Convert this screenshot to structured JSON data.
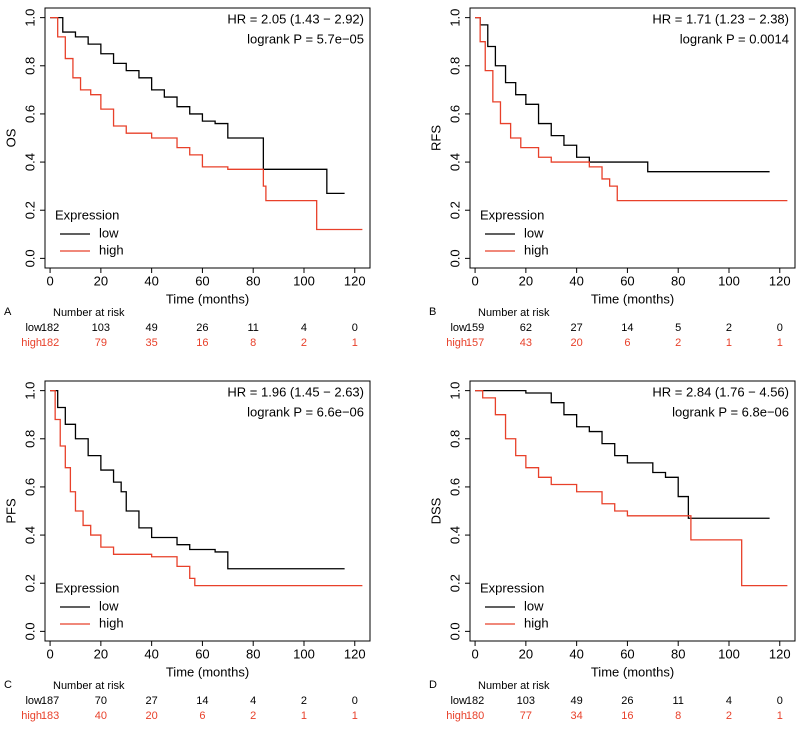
{
  "chart_data": [
    {
      "type": "line",
      "panel": "A",
      "y_label": "OS",
      "x_label": "Time (months)",
      "hr": "HR = 2.05 (1.43 − 2.92)",
      "logrank": "logrank P = 5.7e−05",
      "legend_title": "Expression",
      "legend": "bottom-left",
      "xlim": [
        -2,
        126
      ],
      "ylim": [
        -0.04,
        1.04
      ],
      "xticks": [
        0,
        20,
        40,
        60,
        80,
        100,
        120
      ],
      "yticks": [
        {
          "value": 0,
          "label": "0.0"
        },
        0.2,
        0.4,
        0.6,
        0.8,
        {
          "value": 1,
          "label": "1.0"
        }
      ],
      "series": [
        {
          "name": "low",
          "color": "#000000",
          "x": [
            0,
            5,
            10,
            15,
            20,
            25,
            30,
            35,
            40,
            45,
            50,
            55,
            60,
            65,
            70,
            82,
            84,
            108,
            109,
            116
          ],
          "values": [
            1,
            0.94,
            0.92,
            0.89,
            0.85,
            0.81,
            0.78,
            0.75,
            0.7,
            0.67,
            0.63,
            0.6,
            0.57,
            0.56,
            0.5,
            0.5,
            0.37,
            0.37,
            0.27,
            0.27
          ]
        },
        {
          "name": "high",
          "color": "#e8402a",
          "x": [
            0,
            3,
            6,
            9,
            12,
            16,
            20,
            25,
            30,
            40,
            50,
            55,
            60,
            70,
            82,
            84,
            85,
            104,
            105,
            123
          ],
          "values": [
            1,
            0.92,
            0.83,
            0.75,
            0.7,
            0.68,
            0.62,
            0.55,
            0.52,
            0.5,
            0.46,
            0.43,
            0.38,
            0.37,
            0.37,
            0.3,
            0.24,
            0.24,
            0.12,
            0.12
          ]
        }
      ],
      "risk_table": {
        "title": "Number at risk",
        "rows": [
          {
            "label": "low",
            "values": [
              182,
              103,
              49,
              26,
              11,
              4,
              0
            ]
          },
          {
            "label": "high",
            "values": [
              182,
              79,
              35,
              16,
              8,
              2,
              1
            ]
          }
        ]
      }
    },
    {
      "type": "line",
      "panel": "B",
      "y_label": "RFS",
      "x_label": "Time (months)",
      "hr": "HR = 1.71 (1.23 − 2.38)",
      "logrank": "logrank P = 0.0014",
      "legend_title": "Expression",
      "legend": "bottom-left",
      "xlim": [
        -2,
        126
      ],
      "ylim": [
        -0.04,
        1.04
      ],
      "xticks": [
        0,
        20,
        40,
        60,
        80,
        100,
        120
      ],
      "yticks": [
        {
          "value": 0,
          "label": "0.0"
        },
        0.2,
        0.4,
        0.6,
        0.8,
        {
          "value": 1,
          "label": "1.0"
        }
      ],
      "series": [
        {
          "name": "low",
          "color": "#000000",
          "x": [
            0,
            2,
            5,
            8,
            12,
            16,
            20,
            25,
            30,
            35,
            40,
            45,
            60,
            65,
            68,
            116
          ],
          "values": [
            1,
            0.97,
            0.88,
            0.8,
            0.73,
            0.68,
            0.64,
            0.56,
            0.51,
            0.47,
            0.42,
            0.4,
            0.4,
            0.4,
            0.36,
            0.36
          ]
        },
        {
          "name": "high",
          "color": "#e8402a",
          "x": [
            0,
            2,
            4,
            7,
            10,
            14,
            18,
            25,
            30,
            45,
            50,
            53,
            56,
            123
          ],
          "values": [
            1,
            0.9,
            0.78,
            0.65,
            0.56,
            0.5,
            0.46,
            0.42,
            0.4,
            0.38,
            0.33,
            0.3,
            0.24,
            0.24
          ]
        }
      ],
      "risk_table": {
        "title": "Number at risk",
        "rows": [
          {
            "label": "low",
            "values": [
              159,
              62,
              27,
              14,
              5,
              2,
              0
            ]
          },
          {
            "label": "high",
            "values": [
              157,
              43,
              20,
              6,
              2,
              1,
              1
            ]
          }
        ]
      }
    },
    {
      "type": "line",
      "panel": "C",
      "y_label": "PFS",
      "x_label": "Time (months)",
      "hr": "HR = 1.96 (1.45 − 2.63)",
      "logrank": "logrank P = 6.6e−06",
      "legend_title": "Expression",
      "legend": "bottom-left",
      "xlim": [
        -2,
        126
      ],
      "ylim": [
        -0.04,
        1.04
      ],
      "xticks": [
        0,
        20,
        40,
        60,
        80,
        100,
        120
      ],
      "yticks": [
        {
          "value": 0,
          "label": "0.0"
        },
        0.2,
        0.4,
        0.6,
        0.8,
        {
          "value": 1,
          "label": "1.0"
        }
      ],
      "series": [
        {
          "name": "low",
          "color": "#000000",
          "x": [
            0,
            3,
            6,
            10,
            15,
            20,
            25,
            28,
            30,
            35,
            40,
            50,
            55,
            65,
            70,
            116
          ],
          "values": [
            1,
            0.93,
            0.86,
            0.8,
            0.73,
            0.67,
            0.62,
            0.58,
            0.5,
            0.43,
            0.39,
            0.36,
            0.34,
            0.33,
            0.26,
            0.26
          ]
        },
        {
          "name": "high",
          "color": "#e8402a",
          "x": [
            0,
            2,
            4,
            6,
            8,
            10,
            13,
            16,
            20,
            25,
            40,
            50,
            55,
            57,
            123
          ],
          "values": [
            1,
            0.88,
            0.77,
            0.68,
            0.58,
            0.5,
            0.44,
            0.4,
            0.35,
            0.32,
            0.31,
            0.27,
            0.22,
            0.19,
            0.19
          ]
        }
      ],
      "risk_table": {
        "title": "Number at risk",
        "rows": [
          {
            "label": "low",
            "values": [
              187,
              70,
              27,
              14,
              4,
              2,
              0
            ]
          },
          {
            "label": "high",
            "values": [
              183,
              40,
              20,
              6,
              2,
              1,
              1
            ]
          }
        ]
      }
    },
    {
      "type": "line",
      "panel": "D",
      "y_label": "DSS",
      "x_label": "Time (months)",
      "hr": "HR = 2.84 (1.76 − 4.56)",
      "logrank": "logrank P = 6.8e−06",
      "legend_title": "Expression",
      "legend": "bottom-left",
      "xlim": [
        -2,
        126
      ],
      "ylim": [
        -0.04,
        1.04
      ],
      "xticks": [
        0,
        20,
        40,
        60,
        80,
        100,
        120
      ],
      "yticks": [
        {
          "value": 0,
          "label": "0.0"
        },
        0.2,
        0.4,
        0.6,
        0.8,
        {
          "value": 1,
          "label": "1.0"
        }
      ],
      "series": [
        {
          "name": "low",
          "color": "#000000",
          "x": [
            0,
            20,
            30,
            35,
            40,
            45,
            50,
            55,
            60,
            70,
            75,
            80,
            84,
            116
          ],
          "values": [
            1,
            0.99,
            0.95,
            0.9,
            0.85,
            0.83,
            0.78,
            0.73,
            0.7,
            0.66,
            0.64,
            0.56,
            0.47,
            0.47
          ]
        },
        {
          "name": "high",
          "color": "#e8402a",
          "x": [
            0,
            3,
            8,
            12,
            16,
            20,
            25,
            30,
            40,
            50,
            55,
            60,
            84,
            85,
            104,
            105,
            123
          ],
          "values": [
            1,
            0.97,
            0.9,
            0.8,
            0.73,
            0.68,
            0.64,
            0.61,
            0.58,
            0.53,
            0.5,
            0.48,
            0.48,
            0.38,
            0.38,
            0.19,
            0.19
          ]
        }
      ],
      "risk_table": {
        "title": "Number at risk",
        "rows": [
          {
            "label": "low",
            "values": [
              182,
              103,
              49,
              26,
              11,
              4,
              0
            ]
          },
          {
            "label": "high",
            "values": [
              180,
              77,
              34,
              16,
              8,
              2,
              1
            ]
          }
        ]
      }
    }
  ]
}
